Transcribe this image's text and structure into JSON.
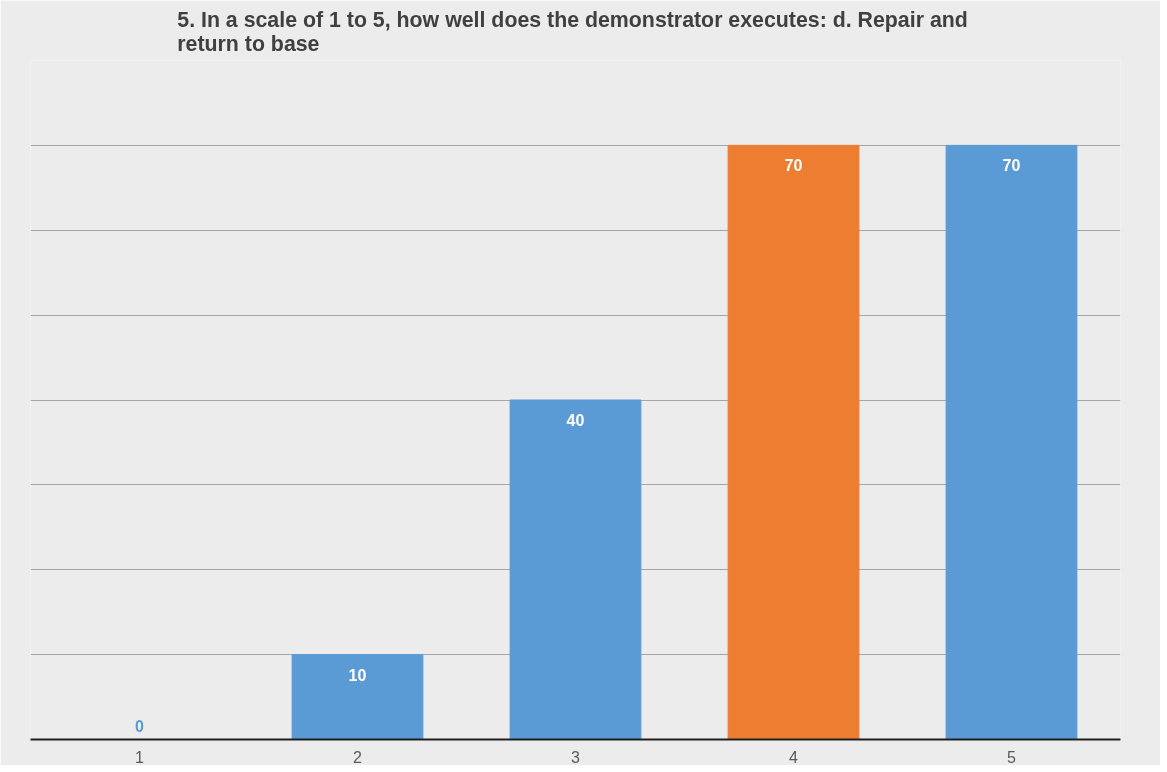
{
  "chart_data": {
    "type": "bar",
    "title": "5. In a scale of 1 to 5, how well does the demonstrator executes:  d. Repair and return to base",
    "categories": [
      "1",
      "2",
      "3",
      "4",
      "5"
    ],
    "values": [
      0,
      10,
      40,
      70,
      70
    ],
    "colors": [
      "#5b9bd5",
      "#5b9bd5",
      "#5b9bd5",
      "#ed7d31",
      "#5b9bd5"
    ],
    "ylim": [
      0,
      80
    ],
    "yticks": [
      {
        "value": 0,
        "label": null
      },
      {
        "value": 10,
        "label": null
      },
      {
        "value": 20,
        "label": null
      },
      {
        "value": 30,
        "label": null
      },
      {
        "value": 40,
        "label": null
      },
      {
        "value": 50,
        "label": null
      },
      {
        "value": 60,
        "label": null
      },
      {
        "value": 70,
        "label": null
      },
      {
        "value": 80,
        "label": null
      }
    ],
    "tick_labels": "x",
    "grid": "y",
    "data_labels": true
  }
}
